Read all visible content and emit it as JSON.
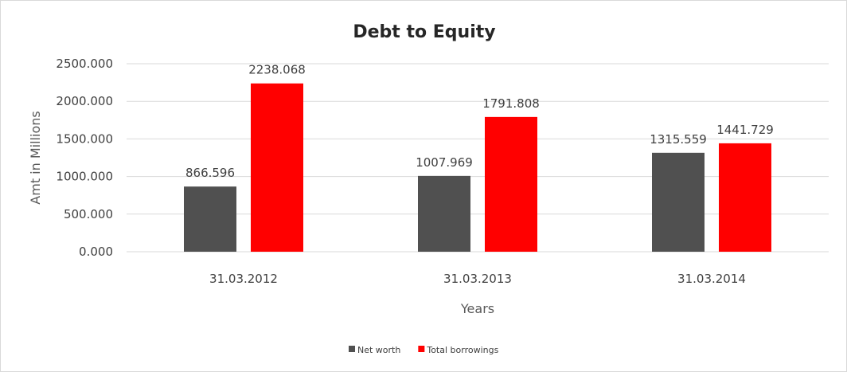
{
  "chart_data": {
    "type": "bar",
    "title": "Debt to Equity",
    "xlabel": "Years",
    "ylabel": "Amt in Millions",
    "categories": [
      "31.03.2012",
      "31.03.2013",
      "31.03.2014"
    ],
    "series": [
      {
        "name": "Net worth",
        "color": "#505050",
        "values": [
          866.596,
          1007.969,
          1315.559
        ],
        "labels": [
          "866.596",
          "1007.969",
          "1315.559"
        ]
      },
      {
        "name": "Total borrowings",
        "color": "#ff0000",
        "values": [
          2238.068,
          1791.808,
          1441.729
        ],
        "labels": [
          "2238.068",
          "1791.808",
          "1441.729"
        ]
      }
    ],
    "ylim": [
      0,
      2500
    ],
    "yticks": [
      "0.000",
      "500.000",
      "1000.000",
      "1500.000",
      "2000.000",
      "2500.000"
    ],
    "grid": true,
    "legend": "bottom"
  }
}
